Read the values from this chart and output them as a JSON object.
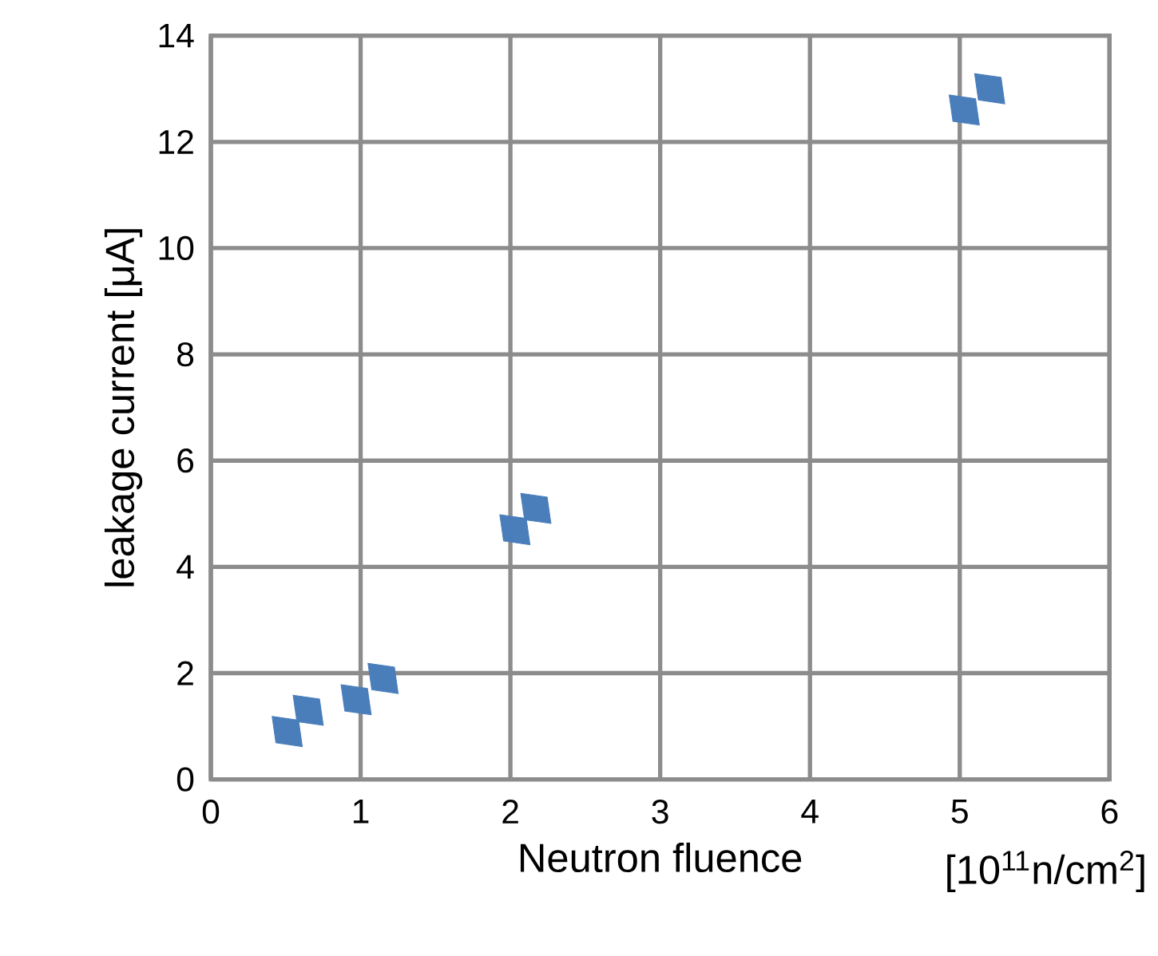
{
  "chart_data": {
    "type": "scatter",
    "xlabel": "Neutron fluence",
    "ylabel": "leakage current [μA]",
    "x": [
      0.51,
      0.65,
      0.97,
      1.15,
      2.03,
      2.17,
      5.03,
      5.2
    ],
    "values": [
      0.9,
      1.3,
      1.5,
      1.9,
      4.7,
      5.1,
      12.6,
      13.0
    ],
    "color": "#4a7ebb",
    "marker": "diamond",
    "grid": true,
    "xlim": [
      0,
      6
    ],
    "ylim": [
      0,
      14
    ],
    "xticks": [
      0,
      1,
      2,
      3,
      4,
      5,
      6
    ],
    "yticks": [
      0,
      2,
      4,
      6,
      8,
      10,
      12,
      14
    ],
    "annotations": [
      {
        "text": "[10$^{11}$n/cm$^{2}$]"
      }
    ]
  }
}
